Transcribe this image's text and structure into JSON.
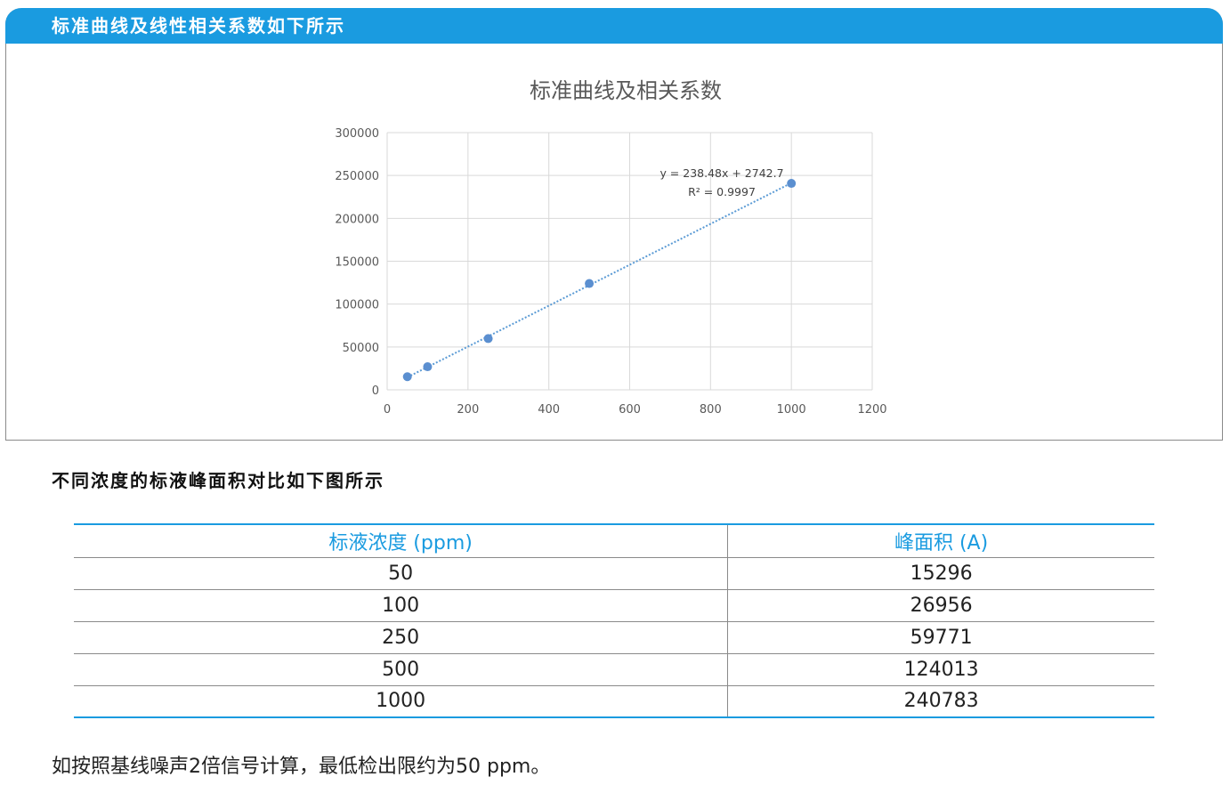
{
  "header": {
    "title": "标准曲线及线性相关系数如下所示"
  },
  "chart_data": {
    "type": "scatter",
    "title": "标准曲线及相关系数",
    "xlabel": "",
    "ylabel": "",
    "xlim": [
      0,
      1200
    ],
    "ylim": [
      0,
      300000
    ],
    "x_ticks": [
      0,
      200,
      400,
      600,
      800,
      1000,
      1200
    ],
    "y_ticks": [
      0,
      50000,
      100000,
      150000,
      200000,
      250000,
      300000
    ],
    "grid": true,
    "series": [
      {
        "x": [
          50,
          100,
          250,
          500,
          1000
        ],
        "y": [
          15296,
          26956,
          59771,
          124013,
          240783
        ]
      }
    ],
    "trendline": {
      "slope": 238.48,
      "intercept": 2742.7
    },
    "annotations": [
      "y = 238.48x + 2742.7",
      "R² = 0.9997"
    ],
    "colors": {
      "points": "#5b8fd0",
      "trendline": "#5b9bd5",
      "grid": "#d9d9d9"
    }
  },
  "section": {
    "title": "不同浓度的标液峰面积对比如下图所示"
  },
  "table": {
    "headers": [
      "标液浓度 (ppm)",
      "峰面积 (A)"
    ],
    "rows": [
      [
        "50",
        "15296"
      ],
      [
        "100",
        "26956"
      ],
      [
        "250",
        "59771"
      ],
      [
        "500",
        "124013"
      ],
      [
        "1000",
        "240783"
      ]
    ]
  },
  "footnote": "如按照基线噪声2倍信号计算，最低检出限约为50 ppm。",
  "colors": {
    "accent": "#1a9be0"
  }
}
